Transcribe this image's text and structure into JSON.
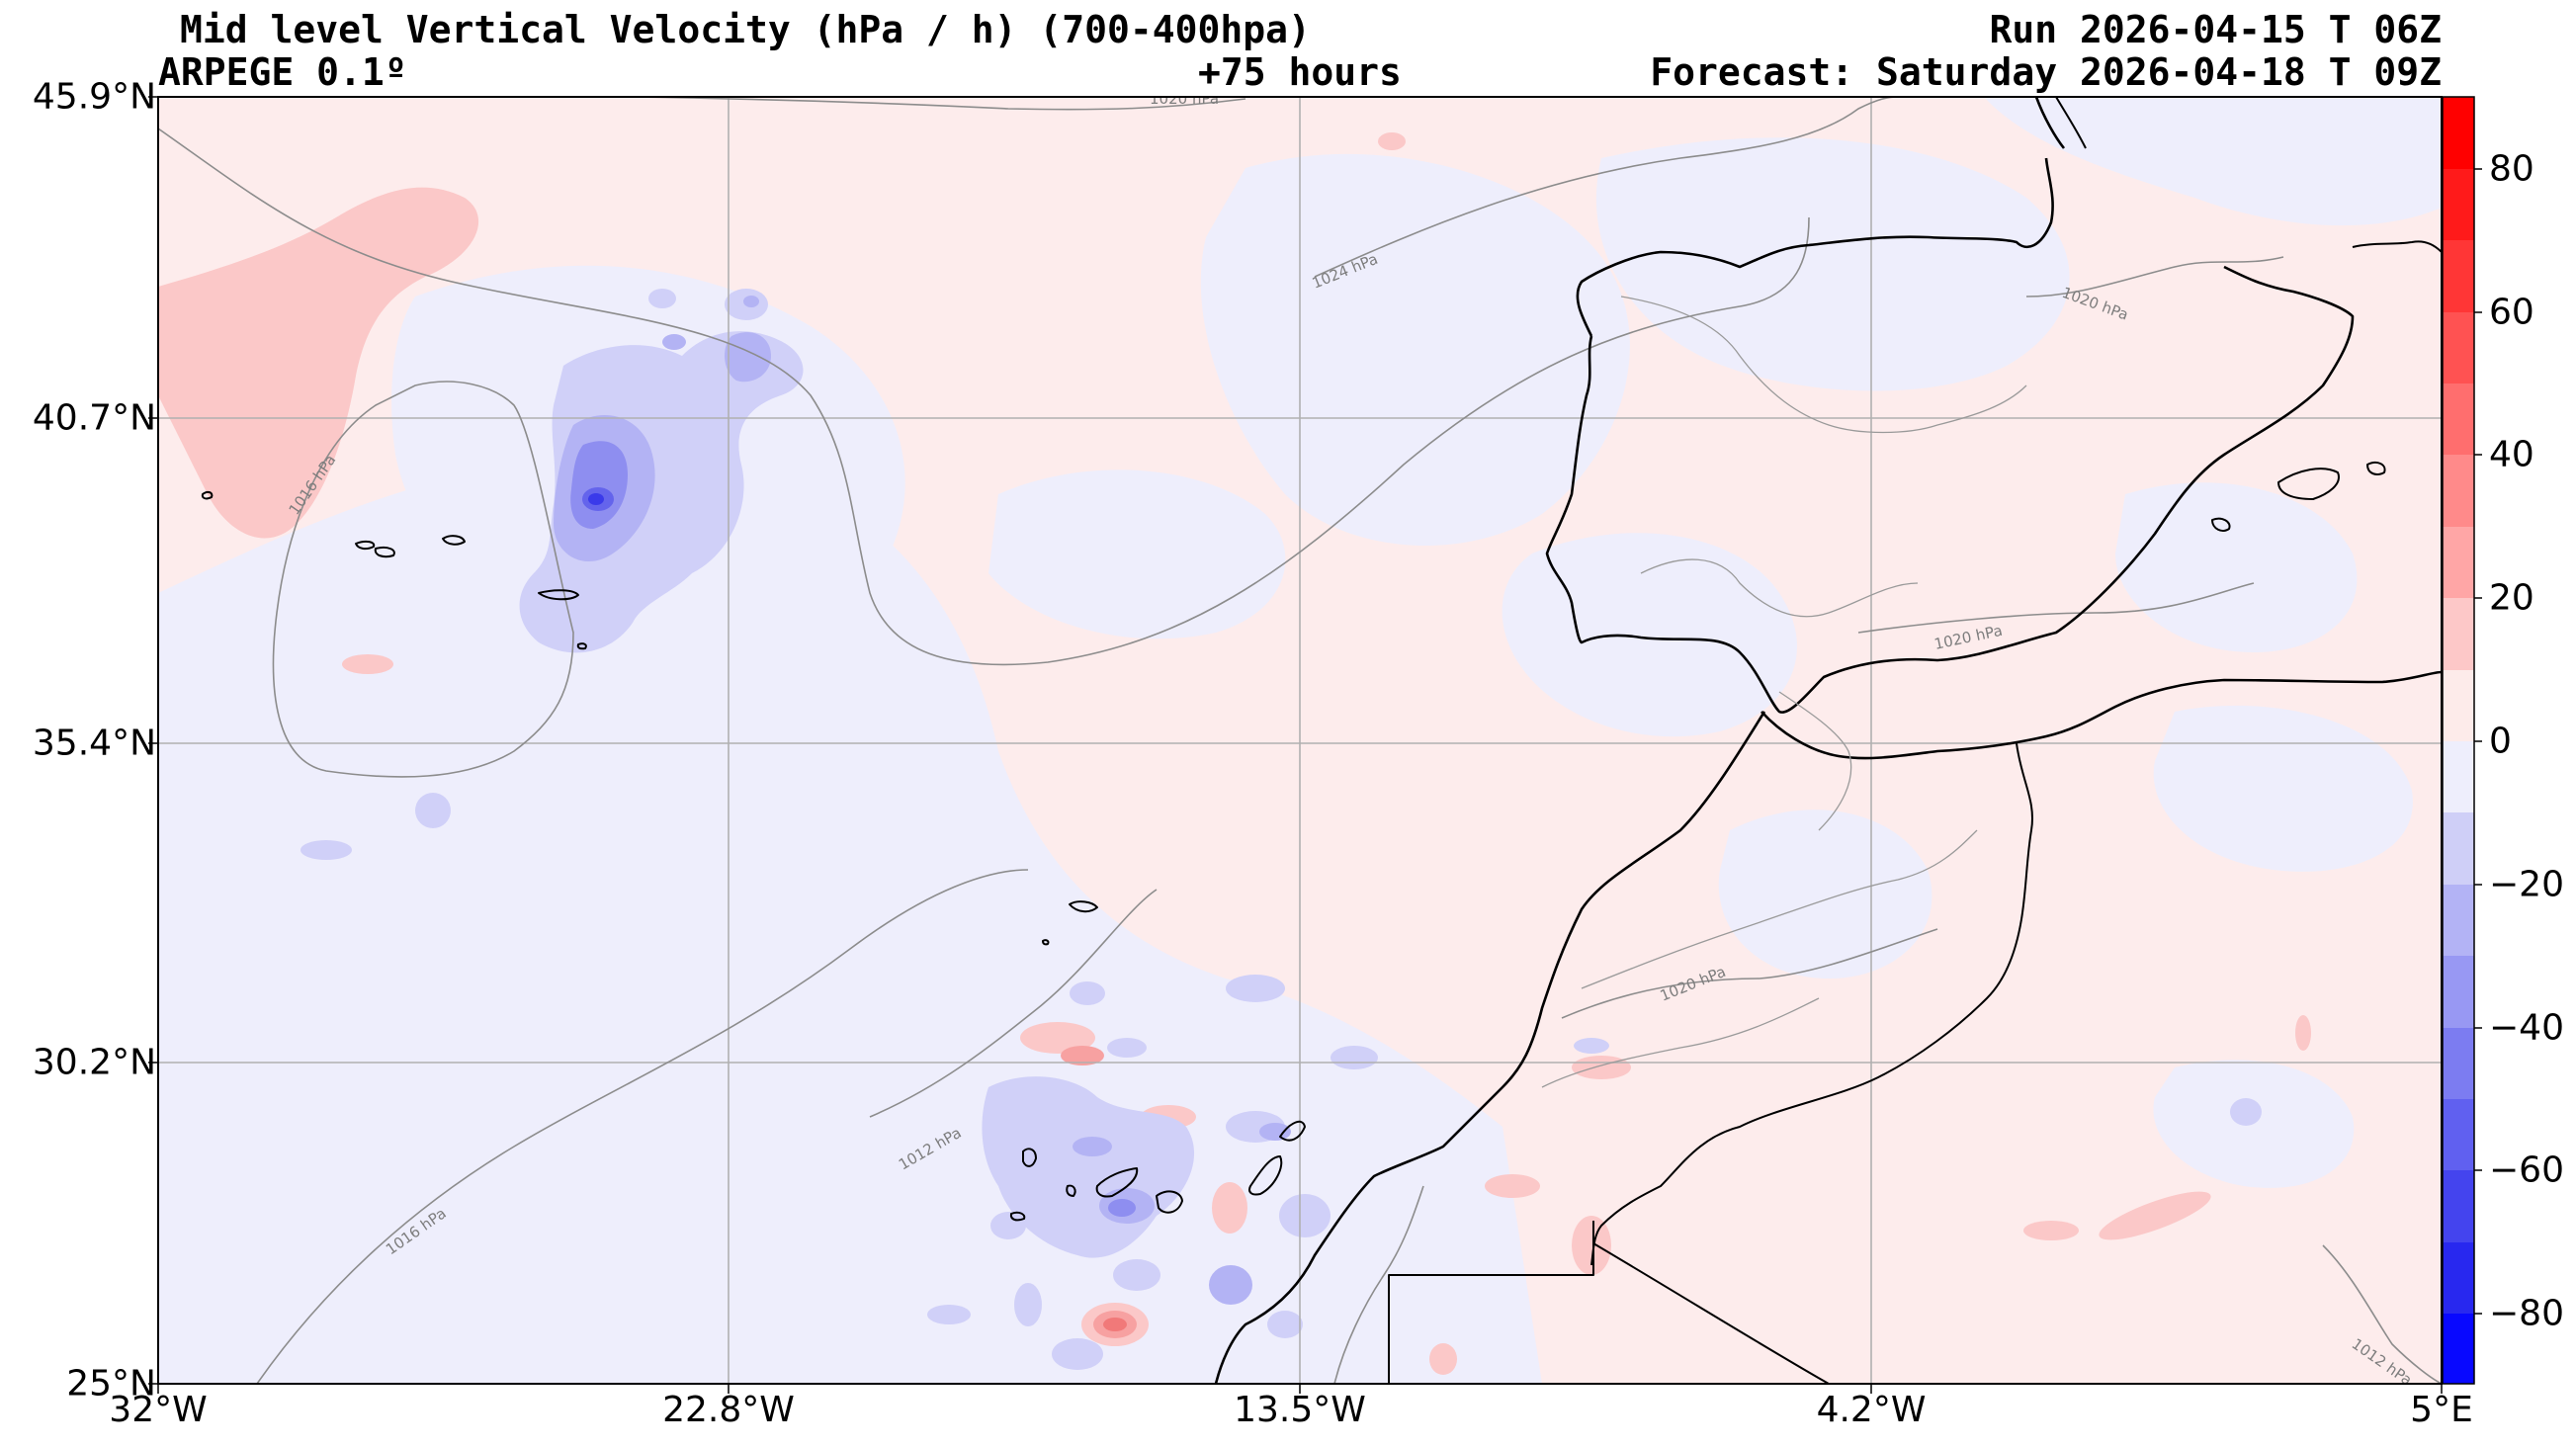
{
  "header": {
    "title": "Mid level Vertical Velocity (hPa / h)  (700-400hpa)",
    "run": "Run 2026-04-15 T 06Z",
    "model": "ARPEGE 0.1º",
    "lead_time": "+75 hours",
    "forecast": "Forecast: Saturday 2026-04-18 T 09Z"
  },
  "axes": {
    "lat_labels": [
      "45.9°N",
      "40.7°N",
      "35.4°N",
      "30.2°N",
      "25°N"
    ],
    "lon_labels": [
      "32°W",
      "22.8°W",
      "13.5°W",
      "4.2°W",
      "5°E"
    ]
  },
  "colorbar": {
    "tick_labels": [
      "80",
      "60",
      "40",
      "20",
      "0",
      "−20",
      "−40",
      "−60",
      "−80"
    ],
    "range": [
      -90,
      90
    ]
  },
  "isobar_labels": [
    "1020 hPa",
    "1024 hPa",
    "1016 hPa",
    "1020 hPa",
    "1020 hPa",
    "1020 hPa",
    "1012 hPa",
    "1016 hPa",
    "1012 hPa"
  ],
  "colors": {
    "ascent": "#1a1aff",
    "descent": "#ff1a1a",
    "neutral_pos": "#fdebea",
    "neutral_neg": "#eeeefc",
    "coastline": "#000000",
    "isobar": "#8c8c8c"
  }
}
